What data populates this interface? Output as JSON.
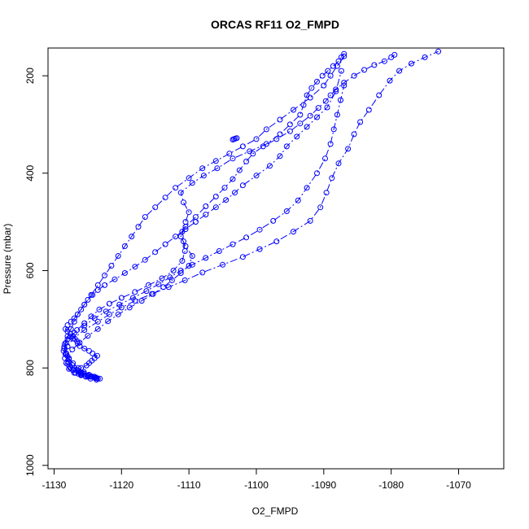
{
  "chart_data": {
    "type": "line",
    "title": "ORCAS RF11 O2_FMPD",
    "xlabel": "O2_FMPD",
    "ylabel": "Pressure (mbar)",
    "xlim": [
      -1130.9,
      -1063.3
    ],
    "ylim": [
      1007,
      143
    ],
    "y_reversed": true,
    "x_ticks": [
      -1130,
      -1120,
      -1110,
      -1100,
      -1090,
      -1080,
      -1070
    ],
    "y_ticks": [
      200,
      400,
      600,
      800,
      1000
    ],
    "colors": {
      "series": "#0000ff",
      "axis": "#000000"
    },
    "marker": "open-circle",
    "series": [
      {
        "x": [
          -1123.5,
          -1124.0,
          -1124.5,
          -1125.0,
          -1125.5,
          -1126.0,
          -1126.3,
          -1126.0,
          -1125.2,
          -1124.8,
          -1124.4,
          -1124.0,
          -1123.6,
          -1124.3,
          -1124.8,
          -1125.5,
          -1126.2,
          -1126.5,
          -1126.6,
          -1126.9,
          -1127.2,
          -1127.6,
          -1128.0,
          -1128.3,
          -1128.0,
          -1127.5,
          -1127.0,
          -1126.5,
          -1126.0,
          -1125.5,
          -1125.0,
          -1124.3,
          -1123.5,
          -1122.5,
          -1121.0,
          -1119.5,
          -1118.0,
          -1116.5,
          -1115.0,
          -1113.5,
          -1112.0,
          -1110.5,
          -1109.0,
          -1107.5,
          -1106.0,
          -1104.5,
          -1103.2,
          -1102.0,
          -1100.0,
          -1098.0,
          -1096.5,
          -1095.5,
          -1094.0,
          -1092.5,
          -1091.0,
          -1089.5,
          -1088.2,
          -1087.4
        ],
        "y": [
          822,
          820,
          818,
          815,
          812,
          810,
          806,
          800,
          795,
          790,
          785,
          780,
          775,
          770,
          765,
          760,
          755,
          750,
          745,
          740,
          735,
          730,
          725,
          720,
          712,
          705,
          698,
          690,
          680,
          670,
          660,
          650,
          640,
          630,
          618,
          605,
          592,
          578,
          562,
          546,
          530,
          515,
          500,
          485,
          470,
          455,
          440,
          425,
          405,
          385,
          365,
          345,
          325,
          305,
          285,
          265,
          232,
          190
        ]
      },
      {
        "x": [
          -1087.0,
          -1088.0,
          -1089.0,
          -1090.0,
          -1092.0,
          -1094.5,
          -1096.5,
          -1098.5,
          -1100.0,
          -1102.0,
          -1104.0,
          -1106.0,
          -1108.0,
          -1110.0,
          -1112.0,
          -1113.5,
          -1115.0,
          -1116.5,
          -1117.5,
          -1118.5,
          -1119.5,
          -1120.5,
          -1121.5,
          -1122.5,
          -1123.5,
          -1124.5,
          -1125.5,
          -1126.5,
          -1127.0,
          -1127.5,
          -1128.0,
          -1128.4,
          -1128.6,
          -1128.4,
          -1128.0,
          -1127.6,
          -1127.2,
          -1126.8,
          -1126.4,
          -1126.0,
          -1125.5,
          -1125.0,
          -1124.5,
          -1124.0,
          -1123.7
        ],
        "y": [
          160,
          180,
          200,
          220,
          245,
          270,
          290,
          310,
          330,
          345,
          360,
          375,
          390,
          410,
          430,
          450,
          470,
          490,
          510,
          530,
          550,
          570,
          590,
          610,
          630,
          650,
          670,
          690,
          705,
          720,
          735,
          750,
          765,
          780,
          792,
          800,
          805,
          810,
          812,
          814,
          815,
          816,
          817,
          818,
          820
        ]
      },
      {
        "x": [
          -1123.8,
          -1124.2,
          -1124.8,
          -1125.6,
          -1126.4,
          -1127.2,
          -1127.8,
          -1128.2,
          -1128.5,
          -1128.2,
          -1127.6,
          -1126.6,
          -1125.5,
          -1124.5,
          -1123.3,
          -1121.8,
          -1120.0,
          -1118.0,
          -1116.0,
          -1114.0,
          -1112.3,
          -1111.0,
          -1110.6,
          -1110.8,
          -1111.0,
          -1110.5,
          -1110.0,
          -1110.8,
          -1111.2,
          -1109.5,
          -1107.8,
          -1105.8,
          -1103.5,
          -1101.0,
          -1098.5,
          -1096.5,
          -1095.0,
          -1093.5,
          -1093.0,
          -1092.5,
          -1091.8,
          -1091.0,
          -1090.2,
          -1089.4,
          -1088.6,
          -1087.8,
          -1087.4,
          -1087.0
        ],
        "y": [
          821,
          818,
          814,
          808,
          800,
          790,
          780,
          770,
          760,
          748,
          736,
          722,
          708,
          694,
          680,
          668,
          656,
          644,
          630,
          616,
          600,
          580,
          560,
          540,
          520,
          500,
          480,
          460,
          440,
          420,
          405,
          390,
          370,
          355,
          340,
          320,
          300,
          280,
          260,
          240,
          225,
          212,
          200,
          190,
          180,
          170,
          162,
          155
        ]
      },
      {
        "x": [
          -1124.6,
          -1125.3,
          -1126.0,
          -1126.7,
          -1127.3,
          -1127.8,
          -1128.2,
          -1128.5,
          -1128.0,
          -1127.0,
          -1125.5,
          -1124.0,
          -1122.3,
          -1120.3,
          -1118.3,
          -1116.3,
          -1114.5,
          -1112.8,
          -1111.2,
          -1109.5,
          -1107.5,
          -1105.5,
          -1103.5,
          -1101.5,
          -1099.5,
          -1097.5,
          -1095.5,
          -1093.8,
          -1092.5,
          -1091.0,
          -1089.8,
          -1089.0,
          -1088.5,
          -1088.0,
          -1087.5,
          -1087.0
        ],
        "y": [
          822,
          818,
          812,
          804,
          794,
          782,
          770,
          756,
          741,
          728,
          713,
          698,
          684,
          670,
          656,
          642,
          628,
          614,
          600,
          588,
          574,
          560,
          546,
          532,
          516,
          498,
          478,
          456,
          430,
          400,
          370,
          340,
          310,
          280,
          250,
          220
        ]
      },
      {
        "x": [
          -1123.7,
          -1124.6,
          -1125.8,
          -1127.0,
          -1127.9,
          -1128.3,
          -1128.0,
          -1127.2,
          -1125.5,
          -1123.5,
          -1121.8,
          -1120.0,
          -1118.0,
          -1115.5,
          -1113.0,
          -1110.6,
          -1108.0,
          -1105.0,
          -1102.0,
          -1099.5,
          -1097.0,
          -1094.5,
          -1092.0,
          -1090.5,
          -1089.6,
          -1088.8,
          -1087.8,
          -1086.4,
          -1085.5,
          -1084.6,
          -1083.3,
          -1081.8,
          -1080.2,
          -1078.8,
          -1077.0,
          -1075.0,
          -1073.0
        ],
        "y": [
          824,
          818,
          810,
          800,
          788,
          772,
          756,
          740,
          722,
          705,
          690,
          676,
          662,
          648,
          634,
          620,
          604,
          588,
          572,
          556,
          540,
          520,
          498,
          470,
          440,
          410,
          380,
          350,
          320,
          295,
          270,
          240,
          210,
          190,
          175,
          162,
          150
        ]
      },
      {
        "x": [
          -1123.2,
          -1124.0,
          -1125.0,
          -1126.0,
          -1127.0,
          -1127.8,
          -1128.2,
          -1128.0,
          -1127.3,
          -1126.2,
          -1125.0,
          -1123.5,
          -1122.0,
          -1120.5,
          -1118.8,
          -1117.0,
          -1115.3,
          -1113.8,
          -1112.5,
          -1111.2,
          -1110.0,
          -1109.5,
          -1110.5,
          -1111.2,
          -1110.5,
          -1109.0,
          -1107.5,
          -1106.0,
          -1104.7,
          -1103.5,
          -1102.5,
          -1101.5,
          -1100.5,
          -1099.0,
          -1097.0,
          -1095.0,
          -1093.5,
          -1092.0,
          -1090.8,
          -1089.7,
          -1089.0,
          -1088.2,
          -1087.0,
          -1085.5,
          -1084.0,
          -1082.5,
          -1081.0,
          -1080.0,
          -1079.5
        ],
        "y": [
          822,
          820,
          818,
          815,
          810,
          802,
          790,
          776,
          762,
          748,
          734,
          720,
          704,
          690,
          676,
          662,
          648,
          634,
          620,
          605,
          590,
          570,
          550,
          530,
          510,
          490,
          468,
          448,
          430,
          412,
          394,
          376,
          360,
          345,
          330,
          314,
          298,
          282,
          266,
          252,
          240,
          228,
          214,
          200,
          188,
          178,
          170,
          162,
          157
        ]
      },
      {
        "x": [
          -1103.5,
          -1103.3,
          -1103.1,
          -1102.9
        ],
        "y": [
          331,
          330,
          329,
          328
        ]
      }
    ]
  }
}
